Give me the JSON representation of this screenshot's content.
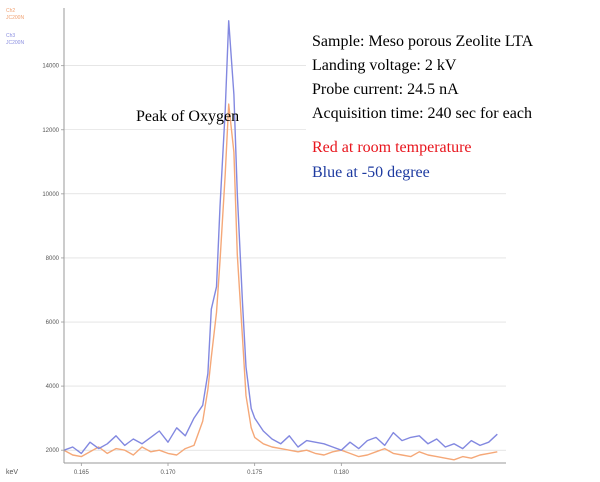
{
  "chart_data": {
    "type": "line",
    "title": "",
    "xlabel": "keV",
    "ylabel": "",
    "xlim": [
      0.164,
      0.1895
    ],
    "ylim": [
      1600,
      15800
    ],
    "x_ticks": [
      0.165,
      0.17,
      0.175,
      0.18
    ],
    "x_tick_labels": [
      "0.165",
      "0.170",
      "0.175",
      "0.180"
    ],
    "y_ticks": [
      2000,
      4000,
      6000,
      8000,
      10000,
      12000,
      14000
    ],
    "y_tick_labels": [
      "2000",
      "4000",
      "6000",
      "8000",
      "10000",
      "12000",
      "14000"
    ],
    "legend": {
      "placement": "top-left",
      "entries": [
        {
          "name": "Ch2",
          "sub": "JC200N",
          "color": "#f0a070"
        },
        {
          "name": "Ch3",
          "sub": "JC200N",
          "color": "#8a8ee0"
        }
      ]
    },
    "series": [
      {
        "name": "Red at room temperature",
        "color": "#f5a878",
        "x": [
          0.164,
          0.1645,
          0.165,
          0.1655,
          0.166,
          0.1665,
          0.167,
          0.1675,
          0.168,
          0.1685,
          0.169,
          0.1695,
          0.17,
          0.1705,
          0.171,
          0.1715,
          0.172,
          0.1723,
          0.1725,
          0.1728,
          0.173,
          0.1733,
          0.1735,
          0.1738,
          0.174,
          0.1743,
          0.1745,
          0.1748,
          0.175,
          0.1755,
          0.176,
          0.1765,
          0.177,
          0.1775,
          0.178,
          0.1785,
          0.179,
          0.1795,
          0.18,
          0.1805,
          0.181,
          0.1815,
          0.182,
          0.1825,
          0.183,
          0.1835,
          0.184,
          0.1845,
          0.185,
          0.1855,
          0.186,
          0.1865,
          0.187,
          0.1875,
          0.188,
          0.1885,
          0.189
        ],
        "y": [
          2000,
          1850,
          1800,
          1950,
          2100,
          1900,
          2050,
          2000,
          1850,
          2100,
          1950,
          2000,
          1900,
          1850,
          2050,
          2150,
          2900,
          3900,
          4900,
          6300,
          7900,
          10600,
          12800,
          11300,
          8100,
          5500,
          3700,
          2700,
          2400,
          2200,
          2100,
          2050,
          2000,
          1950,
          2000,
          1900,
          1850,
          1950,
          2000,
          1900,
          1800,
          1850,
          1950,
          2050,
          1900,
          1850,
          1800,
          1950,
          1850,
          1800,
          1750,
          1700,
          1800,
          1750,
          1850,
          1900,
          1950
        ]
      },
      {
        "name": "Blue at -50 degree",
        "color": "#8288e0",
        "x": [
          0.164,
          0.1645,
          0.165,
          0.1655,
          0.166,
          0.1665,
          0.167,
          0.1675,
          0.168,
          0.1685,
          0.169,
          0.1695,
          0.17,
          0.1705,
          0.171,
          0.1715,
          0.172,
          0.1723,
          0.1725,
          0.1728,
          0.173,
          0.1733,
          0.1735,
          0.1738,
          0.174,
          0.1743,
          0.1745,
          0.1748,
          0.175,
          0.1755,
          0.176,
          0.1765,
          0.177,
          0.1775,
          0.178,
          0.1785,
          0.179,
          0.1795,
          0.18,
          0.1805,
          0.181,
          0.1815,
          0.182,
          0.1825,
          0.183,
          0.1835,
          0.184,
          0.1845,
          0.185,
          0.1855,
          0.186,
          0.1865,
          0.187,
          0.1875,
          0.188,
          0.1885,
          0.189
        ],
        "y": [
          2000,
          2100,
          1900,
          2250,
          2050,
          2200,
          2450,
          2150,
          2350,
          2200,
          2400,
          2600,
          2250,
          2700,
          2450,
          3000,
          3400,
          4400,
          6400,
          7100,
          9600,
          12600,
          15400,
          13100,
          10000,
          6600,
          4600,
          3300,
          3000,
          2600,
          2350,
          2200,
          2450,
          2100,
          2300,
          2250,
          2200,
          2100,
          2000,
          2250,
          2050,
          2300,
          2400,
          2150,
          2550,
          2300,
          2400,
          2450,
          2200,
          2350,
          2100,
          2200,
          2050,
          2300,
          2150,
          2250,
          2500
        ]
      }
    ],
    "annotations": {
      "peak_label": "Peak of Oxygen",
      "info_lines": [
        "Sample: Meso porous Zeolite LTA",
        "Landing voltage: 2 kV",
        "Probe current: 24.5 nA",
        "Acquisition time: 240 sec for each"
      ],
      "red_note": "Red at room temperature",
      "blue_note": "Blue at -50 degree",
      "red_color": "#e8141c",
      "blue_color": "#1d3aa0"
    }
  }
}
